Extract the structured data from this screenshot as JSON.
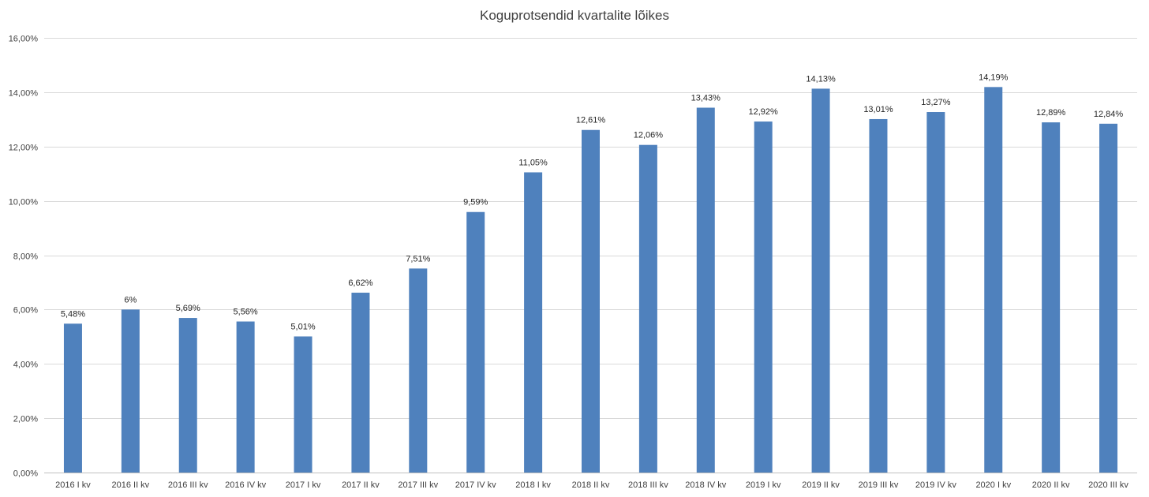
{
  "chart_data": {
    "type": "bar",
    "title": "Koguprotsendid kvartalite lõikes",
    "xlabel": "",
    "ylabel": "",
    "ylim": [
      0,
      16
    ],
    "yticks": [
      0,
      2,
      4,
      6,
      8,
      10,
      12,
      14,
      16
    ],
    "ytick_labels": [
      "0,00%",
      "2,00%",
      "4,00%",
      "6,00%",
      "8,00%",
      "10,00%",
      "12,00%",
      "14,00%",
      "16,00%"
    ],
    "grid": true,
    "legend": "none",
    "bar_color": "#4f81bd",
    "categories": [
      "2016 I kv",
      "2016 II kv",
      "2016 III kv",
      "2016 IV kv",
      "2017 I kv",
      "2017 II kv",
      "2017 III kv",
      "2017 IV kv",
      "2018 I kv",
      "2018 II kv",
      "2018 III kv",
      "2018 IV kv",
      "2019 I kv",
      "2019 II kv",
      "2019 III kv",
      "2019 IV kv",
      "2020 I kv",
      "2020 II kv",
      "2020 III kv"
    ],
    "values": [
      5.48,
      6,
      5.69,
      5.56,
      5.01,
      6.62,
      7.51,
      9.59,
      11.05,
      12.61,
      12.06,
      13.43,
      12.92,
      14.13,
      13.01,
      13.27,
      14.19,
      12.89,
      12.84
    ],
    "data_labels": [
      "5,48%",
      "6%",
      "5,69%",
      "5,56%",
      "5,01%",
      "6,62%",
      "7,51%",
      "9,59%",
      "11,05%",
      "12,61%",
      "12,06%",
      "13,43%",
      "12,92%",
      "14,13%",
      "13,01%",
      "13,27%",
      "14,19%",
      "12,89%",
      "12,84%"
    ]
  }
}
